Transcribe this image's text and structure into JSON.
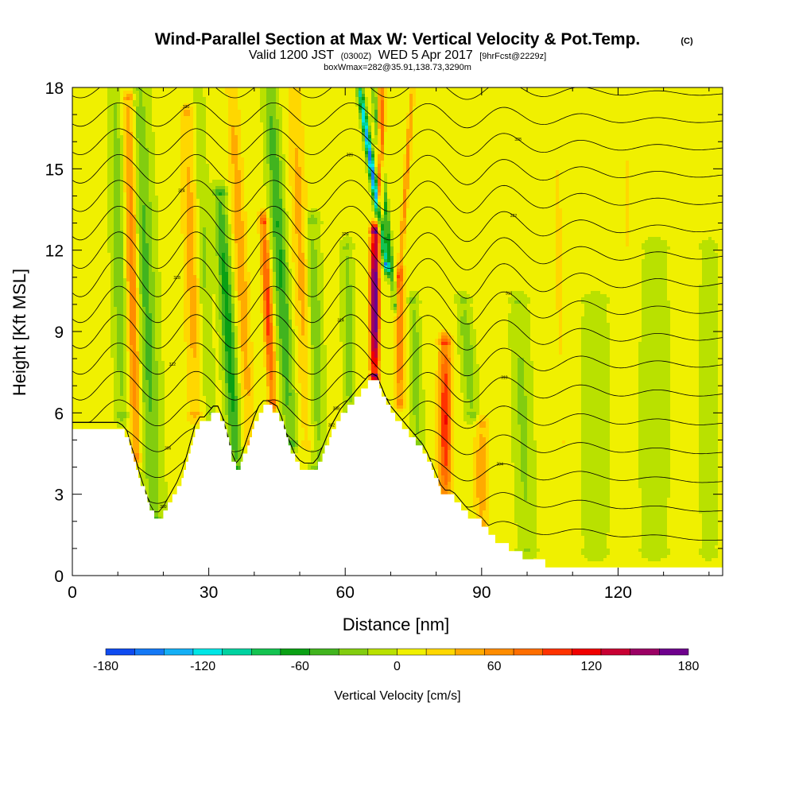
{
  "title": {
    "main": "Wind-Parallel Section at Max W: Vertical Velocity & Pot.Temp.",
    "corner": "(C)",
    "valid_a": "Valid 1200 JST",
    "valid_b": "(0300Z)",
    "valid_c": "WED 5 Apr 2017",
    "valid_d": "[9hrFcst@2229z]",
    "box_info": "boxWmax=282@35.91,138.73,3290m"
  },
  "chart_data": {
    "type": "heatmap",
    "xlabel": "Distance [nm]",
    "ylabel": "Height [Kft MSL]",
    "xlim": [
      0,
      143
    ],
    "ylim": [
      0,
      18
    ],
    "x_ticks": [
      "0",
      "30",
      "60",
      "90",
      "120"
    ],
    "x_tick_values": [
      0,
      30,
      60,
      90,
      120
    ],
    "y_ticks": [
      "0",
      "3",
      "6",
      "9",
      "12",
      "15",
      "18"
    ],
    "y_tick_values": [
      0,
      3,
      6,
      9,
      12,
      15,
      18
    ],
    "colorbar": {
      "label": "Vertical Velocity [cm/s]",
      "min": -180,
      "max": 180,
      "tick_labels": [
        "-180",
        "-120",
        "-60",
        "0",
        "60",
        "120",
        "180"
      ],
      "colors": [
        "#0a1ee6",
        "#0f4bf0",
        "#1478f5",
        "#14aff5",
        "#00e6e6",
        "#00d2a0",
        "#14c350",
        "#0aa014",
        "#41b41e",
        "#82cd0f",
        "#b9e100",
        "#f0f000",
        "#ffd700",
        "#ffaa00",
        "#ff8c00",
        "#ff6e00",
        "#ff3200",
        "#f00000",
        "#c80032",
        "#9b0064",
        "#6e008c",
        "#50009b"
      ]
    },
    "terrain": [
      [
        0,
        5.4
      ],
      [
        2,
        5.4
      ],
      [
        4,
        5.4
      ],
      [
        6,
        5.4
      ],
      [
        8,
        5.4
      ],
      [
        10,
        5.4
      ],
      [
        11,
        5.3
      ],
      [
        12,
        5.1
      ],
      [
        13,
        4.5
      ],
      [
        14,
        4.0
      ],
      [
        15,
        3.4
      ],
      [
        16,
        2.9
      ],
      [
        17,
        2.4
      ],
      [
        18,
        2.1
      ],
      [
        19,
        2.1
      ],
      [
        20,
        2.3
      ],
      [
        21,
        2.6
      ],
      [
        22,
        2.9
      ],
      [
        23,
        3.2
      ],
      [
        24,
        3.6
      ],
      [
        25,
        4.1
      ],
      [
        26,
        4.7
      ],
      [
        27,
        5.3
      ],
      [
        28,
        5.6
      ],
      [
        29,
        5.6
      ],
      [
        30,
        5.8
      ],
      [
        31,
        6.0
      ],
      [
        32,
        6.0
      ],
      [
        33,
        5.6
      ],
      [
        34,
        5.0
      ],
      [
        35,
        4.3
      ],
      [
        36,
        3.9
      ],
      [
        37,
        4.1
      ],
      [
        38,
        4.6
      ],
      [
        39,
        5.1
      ],
      [
        40,
        5.6
      ],
      [
        41,
        6.0
      ],
      [
        42,
        6.2
      ],
      [
        43,
        6.2
      ],
      [
        44,
        6.1
      ],
      [
        45,
        6.0
      ],
      [
        46,
        5.6
      ],
      [
        47,
        5.0
      ],
      [
        48,
        4.6
      ],
      [
        49,
        4.2
      ],
      [
        50,
        4.0
      ],
      [
        51,
        3.9
      ],
      [
        52,
        3.9
      ],
      [
        53,
        3.9
      ],
      [
        54,
        4.1
      ],
      [
        55,
        4.5
      ],
      [
        56,
        4.9
      ],
      [
        57,
        5.3
      ],
      [
        58,
        5.6
      ],
      [
        59,
        5.9
      ],
      [
        60,
        6.1
      ],
      [
        61,
        6.3
      ],
      [
        62,
        6.5
      ],
      [
        63,
        6.7
      ],
      [
        64,
        6.9
      ],
      [
        65,
        7.1
      ],
      [
        66,
        7.2
      ],
      [
        67,
        7.1
      ],
      [
        68,
        6.7
      ],
      [
        69,
        6.3
      ],
      [
        70,
        6.0
      ],
      [
        71,
        5.8
      ],
      [
        72,
        5.6
      ],
      [
        73,
        5.4
      ],
      [
        74,
        5.2
      ],
      [
        75,
        5.0
      ],
      [
        76,
        4.8
      ],
      [
        77,
        4.6
      ],
      [
        78,
        4.3
      ],
      [
        79,
        3.9
      ],
      [
        80,
        3.5
      ],
      [
        81,
        3.1
      ],
      [
        82,
        2.9
      ],
      [
        83,
        2.9
      ],
      [
        84,
        2.8
      ],
      [
        85,
        2.6
      ],
      [
        86,
        2.4
      ],
      [
        87,
        2.2
      ],
      [
        88,
        2.1
      ],
      [
        89,
        2.0
      ],
      [
        90,
        1.9
      ],
      [
        91,
        1.7
      ],
      [
        92,
        1.5
      ],
      [
        93,
        1.3
      ],
      [
        94,
        1.2
      ],
      [
        95,
        1.1
      ],
      [
        96,
        1.0
      ],
      [
        97,
        0.9
      ],
      [
        98,
        0.8
      ],
      [
        99,
        0.7
      ],
      [
        100,
        0.6
      ],
      [
        101,
        0.6
      ],
      [
        102,
        0.5
      ],
      [
        103,
        0.5
      ],
      [
        104,
        0.4
      ],
      [
        105,
        0.35
      ],
      [
        106,
        0.3
      ],
      [
        108,
        0.3
      ],
      [
        143,
        0.3
      ]
    ],
    "features": [
      {
        "type": "updraft",
        "x": 14,
        "zb": 4.5,
        "zt": 17.5,
        "slope": -0.12,
        "w": 1.3,
        "a": 75
      },
      {
        "type": "downdraft",
        "x": 18,
        "zb": 2.2,
        "zt": 18,
        "slope": -0.22,
        "w": 2.2,
        "a": -50
      },
      {
        "type": "downdraft",
        "x": 11,
        "zb": 6,
        "zt": 18,
        "slope": -0.15,
        "w": 1.5,
        "a": -40
      },
      {
        "type": "updraft",
        "x": 27,
        "zb": 6,
        "zt": 17,
        "slope": -0.15,
        "w": 1.8,
        "a": 40
      },
      {
        "type": "downdraft",
        "x": 36,
        "zb": 4,
        "zt": 14,
        "slope": -0.35,
        "w": 1.5,
        "a": -75
      },
      {
        "type": "downdraft",
        "x": 30,
        "zb": 6,
        "zt": 18,
        "slope": -0.2,
        "w": 1.3,
        "a": -30
      },
      {
        "type": "updraft",
        "x": 39,
        "zb": 5,
        "zt": 18,
        "slope": -0.3,
        "w": 1.5,
        "a": 45
      },
      {
        "type": "updraft",
        "x": 44,
        "zb": 6.5,
        "zt": 13,
        "slope": -0.3,
        "w": 1.0,
        "a": 100
      },
      {
        "type": "downdraft",
        "x": 48,
        "zb": 5,
        "zt": 18,
        "slope": -0.35,
        "w": 1.6,
        "a": -65
      },
      {
        "type": "downdraft",
        "x": 54,
        "zb": 4,
        "zt": 13,
        "slope": -0.15,
        "w": 1.6,
        "a": -45
      },
      {
        "type": "updraft",
        "x": 52,
        "zb": 5,
        "zt": 18,
        "slope": -0.25,
        "w": 1.8,
        "a": 40
      },
      {
        "type": "downdraft",
        "x": 61,
        "zb": 6,
        "zt": 12,
        "slope": -0.1,
        "w": 1.2,
        "a": -40
      },
      {
        "type": "updraft",
        "x": 66.5,
        "zb": 7.5,
        "zt": 12.6,
        "slope": 0.0,
        "w": 1.0,
        "a": 195
      },
      {
        "type": "updraft",
        "x": 67.5,
        "zb": 12.6,
        "zt": 18,
        "slope": 0.1,
        "w": 0.7,
        "a": 110
      },
      {
        "type": "downdraft",
        "x": 69,
        "zb": 11.5,
        "zt": 18,
        "slope": -0.9,
        "w": 0.7,
        "a": -170
      },
      {
        "type": "downdraft",
        "x": 71,
        "zb": 10,
        "zt": 18,
        "slope": -0.6,
        "w": 0.6,
        "a": -70
      },
      {
        "type": "updraft",
        "x": 72,
        "zb": 6.5,
        "zt": 11,
        "slope": 0.0,
        "w": 1.0,
        "a": 75
      },
      {
        "type": "updraft",
        "x": 72,
        "zb": 11,
        "zt": 18,
        "slope": 0.4,
        "w": 0.6,
        "a": 60
      },
      {
        "type": "downdraft",
        "x": 76,
        "zb": 5,
        "zt": 10,
        "slope": -0.2,
        "w": 1.2,
        "a": -40
      },
      {
        "type": "updraft",
        "x": 82,
        "zb": 3,
        "zt": 8.5,
        "slope": 0.0,
        "w": 1.4,
        "a": 110
      },
      {
        "type": "updraft",
        "x": 90,
        "zb": 2,
        "zt": 5.5,
        "slope": 0.0,
        "w": 1.5,
        "a": 50
      },
      {
        "type": "downdraft",
        "x": 88,
        "zb": 6,
        "zt": 10,
        "slope": -0.5,
        "w": 1.5,
        "a": -40
      },
      {
        "type": "downdraft",
        "x": 100,
        "zb": 1,
        "zt": 10,
        "slope": -0.2,
        "w": 2.0,
        "a": -30
      },
      {
        "type": "downdraft",
        "x": 115,
        "zb": 1,
        "zt": 10,
        "slope": 0.0,
        "w": 3.0,
        "a": -22
      },
      {
        "type": "downdraft",
        "x": 128,
        "zb": 1,
        "zt": 12,
        "slope": 0.0,
        "w": 3.0,
        "a": -22
      },
      {
        "type": "downdraft",
        "x": 140,
        "zb": 1,
        "zt": 12,
        "slope": 0.0,
        "w": 2.0,
        "a": -20
      },
      {
        "type": "updraft",
        "x": 108,
        "zb": 5,
        "zt": 18,
        "slope": -0.15,
        "w": 2.0,
        "a": 15
      },
      {
        "type": "updraft",
        "x": 122,
        "zb": 9,
        "zt": 18,
        "slope": 0.0,
        "w": 2.0,
        "a": 14
      }
    ],
    "contour_labels": [
      "300",
      "302",
      "304",
      "306",
      "308",
      "310",
      "312",
      "314",
      "316",
      "318",
      "320",
      "322",
      "324",
      "326",
      "328",
      "330",
      "332"
    ],
    "contour_levels": [
      300,
      302,
      304,
      306,
      308,
      310,
      312,
      314,
      316,
      318,
      320,
      322,
      324,
      326,
      328,
      330,
      332
    ]
  }
}
